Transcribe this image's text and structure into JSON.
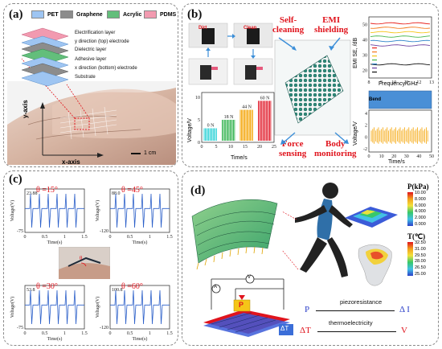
{
  "panel_a": {
    "label": "(a)",
    "legend": [
      {
        "name": "PET",
        "color": "#9ec5f2"
      },
      {
        "name": "Graphene",
        "color": "#8c8c8c"
      },
      {
        "name": "Acrylic",
        "color": "#63be7b"
      },
      {
        "name": "PDMS",
        "color": "#f29ab0"
      }
    ],
    "layers": [
      "Electrification layer",
      "y direction (top) electrode",
      "Dielectric layer",
      "Adhesive layer",
      "x direction (bottom) electrode",
      "Substrate"
    ],
    "y_axis": "y-axis",
    "x_axis": "x-axis",
    "scale": "1 cm"
  },
  "panel_b": {
    "label": "(b)",
    "dirt": "Dirt",
    "clean": "Clean",
    "self_cleaning": "Self-\ncleaning",
    "emi": "EMI\nshielding",
    "force": "Force\nsensing",
    "body": "Body\nmonitoring",
    "bend": "Bend",
    "emi_plot": {
      "ylabel": "EMI SE, /dB",
      "xlabel": "Frequency/GHz",
      "xticks": [
        "8",
        "9",
        "10",
        "11",
        "12",
        "13"
      ],
      "yticks": [
        "20",
        "30",
        "40",
        "50"
      ],
      "series_colors": [
        "#e8231f",
        "#f47a1f",
        "#f5c518",
        "#43b649",
        "#2b82c9",
        "#6b3fa0",
        "#111111"
      ]
    },
    "force_plot": {
      "ylabel": "Voltage/V",
      "xlabel": "Time/s",
      "xticks": [
        "0",
        "5",
        "10",
        "15",
        "20",
        "25"
      ],
      "yticks": [
        "0",
        "5",
        "10"
      ],
      "groups": [
        {
          "label": "0 N",
          "color": "#2ad1d6",
          "level": 0.25
        },
        {
          "label": "18 N",
          "color": "#2db14a",
          "level": 0.42
        },
        {
          "label": "44 N",
          "color": "#f5a300",
          "level": 0.62
        },
        {
          "label": "60 N",
          "color": "#e01a2a",
          "level": 0.8
        }
      ]
    },
    "body_plot": {
      "ylabel": "Voltage/V",
      "xlabel": "Time/s",
      "xticks": [
        "0",
        "10",
        "20",
        "30",
        "40",
        "50"
      ],
      "yticks": [
        "-2",
        "0",
        "2",
        "4"
      ],
      "color": "#f5a300"
    }
  },
  "panel_c": {
    "label": "(c)",
    "plots": [
      {
        "title": "θ =15°",
        "ytop": "23.88",
        "ybot": "-75",
        "xticks": [
          "0",
          "0.5",
          "1",
          "1.5"
        ],
        "ylabel": "Voltage(V)",
        "xlabel": "Time(s)"
      },
      {
        "title": "θ =45°",
        "ytop": "88.0",
        "ybot": "-120",
        "xticks": [
          "0",
          "0.5",
          "1",
          "1.5"
        ],
        "ylabel": "Voltage(V)",
        "xlabel": "Time(s)"
      },
      {
        "title": "θ =30°",
        "ytop": "53.8",
        "ybot": "-75",
        "xticks": [
          "0",
          "0.5",
          "1",
          "1.5"
        ],
        "ylabel": "Voltage(V)",
        "xlabel": "Time(s)"
      },
      {
        "title": "θ =60°",
        "ytop": "100.8",
        "ybot": "-120",
        "xticks": [
          "0",
          "0.5",
          "1",
          "1.5"
        ],
        "ylabel": "Voltage(V)",
        "xlabel": "Time(s)"
      }
    ],
    "theta": "θ"
  },
  "panel_d": {
    "label": "(d)",
    "p_title": "P(kPa)",
    "p_ticks": [
      "10.00",
      "8.000",
      "6.000",
      "4.000",
      "2.000",
      "0.000"
    ],
    "t_title": "T(℃)",
    "t_ticks": [
      "32.50",
      "31.00",
      "29.50",
      "28.00",
      "26.50",
      "25.00"
    ],
    "circuit_a": "A",
    "circuit_v": "V",
    "p_tag": "P",
    "dt_tag": "ΔT",
    "rel1_left": "P",
    "rel1_mid": "piezoresistance",
    "rel1_right": "Δ I",
    "rel2_left": "ΔT",
    "rel2_mid": "thermoelectricity",
    "rel2_right": "V"
  }
}
